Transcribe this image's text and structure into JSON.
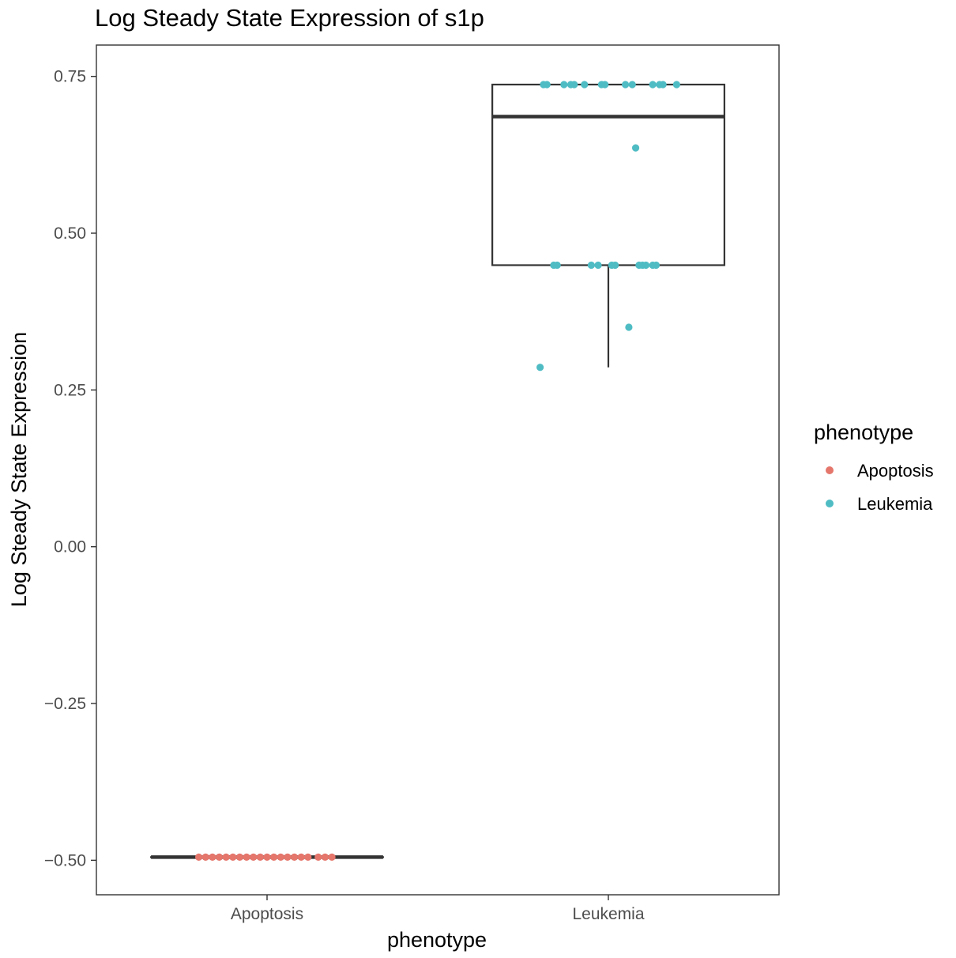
{
  "chart_data": {
    "type": "box",
    "title": "Log Steady State Expression of s1p",
    "xlabel": "phenotype",
    "ylabel": "Log Steady State Expression",
    "categories": [
      "Apoptosis",
      "Leukemia"
    ],
    "ylim": [
      -0.555,
      0.8
    ],
    "yticks": [
      0.75,
      0.5,
      0.25,
      0.0,
      -0.25,
      -0.5
    ],
    "ytick_labels": [
      "0.75",
      "0.50",
      "0.25",
      "0.00",
      "−0.25",
      "−0.50"
    ],
    "grid": false,
    "legend": {
      "title": "phenotype",
      "placement": "right",
      "entries": [
        {
          "label": "Apoptosis",
          "color": "#E5766C"
        },
        {
          "label": "Leukemia",
          "color": "#4FBCC4"
        }
      ]
    },
    "boxes": [
      {
        "category": "Apoptosis",
        "min": -0.495,
        "q1": -0.495,
        "median": -0.495,
        "q3": -0.495,
        "max": -0.495
      },
      {
        "category": "Leukemia",
        "min": 0.286,
        "q1": 0.449,
        "median": 0.686,
        "q3": 0.737,
        "max": 0.737
      }
    ],
    "series": [
      {
        "name": "Apoptosis",
        "color": "#E5766C",
        "points": [
          {
            "x": -0.2,
            "y": -0.495
          },
          {
            "x": -0.18,
            "y": -0.495
          },
          {
            "x": -0.16,
            "y": -0.495
          },
          {
            "x": -0.14,
            "y": -0.495
          },
          {
            "x": -0.12,
            "y": -0.495
          },
          {
            "x": -0.1,
            "y": -0.495
          },
          {
            "x": -0.08,
            "y": -0.495
          },
          {
            "x": -0.06,
            "y": -0.495
          },
          {
            "x": -0.04,
            "y": -0.495
          },
          {
            "x": -0.02,
            "y": -0.495
          },
          {
            "x": 0.0,
            "y": -0.495
          },
          {
            "x": 0.02,
            "y": -0.495
          },
          {
            "x": 0.04,
            "y": -0.495
          },
          {
            "x": 0.06,
            "y": -0.495
          },
          {
            "x": 0.08,
            "y": -0.495
          },
          {
            "x": 0.1,
            "y": -0.495
          },
          {
            "x": 0.12,
            "y": -0.495
          },
          {
            "x": 0.15,
            "y": -0.495
          },
          {
            "x": 0.17,
            "y": -0.495
          },
          {
            "x": 0.19,
            "y": -0.495
          }
        ]
      },
      {
        "name": "Leukemia",
        "color": "#4FBCC4",
        "points": [
          {
            "x": -0.19,
            "y": 0.737
          },
          {
            "x": -0.18,
            "y": 0.737
          },
          {
            "x": -0.13,
            "y": 0.737
          },
          {
            "x": -0.11,
            "y": 0.737
          },
          {
            "x": -0.1,
            "y": 0.737
          },
          {
            "x": -0.07,
            "y": 0.737
          },
          {
            "x": -0.02,
            "y": 0.737
          },
          {
            "x": -0.01,
            "y": 0.737
          },
          {
            "x": 0.05,
            "y": 0.737
          },
          {
            "x": 0.07,
            "y": 0.737
          },
          {
            "x": 0.13,
            "y": 0.737
          },
          {
            "x": 0.15,
            "y": 0.737
          },
          {
            "x": 0.16,
            "y": 0.737
          },
          {
            "x": 0.2,
            "y": 0.737
          },
          {
            "x": 0.08,
            "y": 0.636
          },
          {
            "x": -0.16,
            "y": 0.449
          },
          {
            "x": -0.15,
            "y": 0.449
          },
          {
            "x": -0.05,
            "y": 0.449
          },
          {
            "x": -0.03,
            "y": 0.449
          },
          {
            "x": 0.01,
            "y": 0.449
          },
          {
            "x": 0.02,
            "y": 0.449
          },
          {
            "x": 0.09,
            "y": 0.449
          },
          {
            "x": 0.1,
            "y": 0.449
          },
          {
            "x": 0.11,
            "y": 0.449
          },
          {
            "x": 0.13,
            "y": 0.449
          },
          {
            "x": 0.14,
            "y": 0.449
          },
          {
            "x": 0.06,
            "y": 0.35
          },
          {
            "x": -0.2,
            "y": 0.286
          }
        ]
      }
    ]
  }
}
